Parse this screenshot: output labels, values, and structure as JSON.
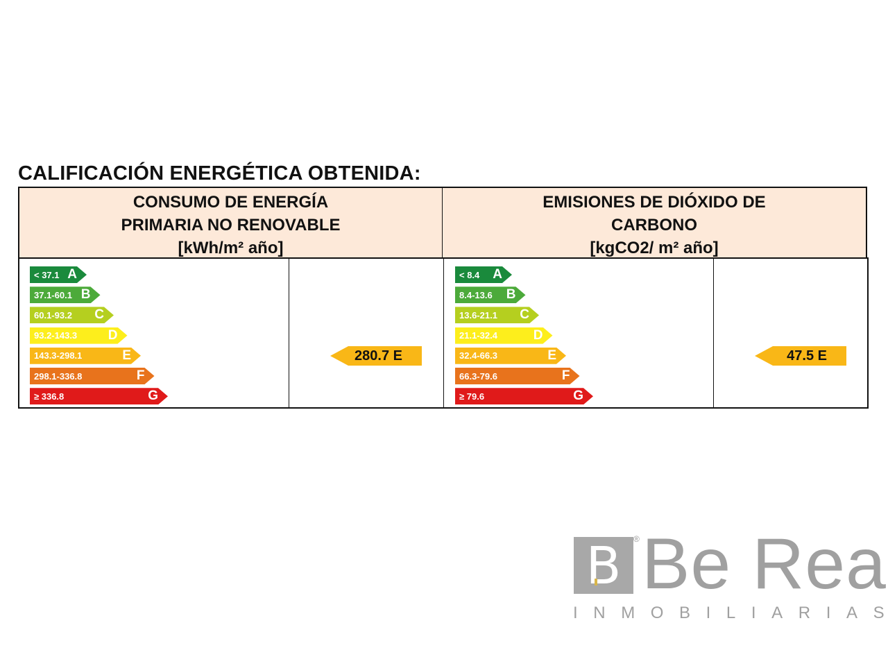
{
  "title": "CALIFICACIÓN ENERGÉTICA OBTENIDA:",
  "energy": {
    "header": [
      "CONSUMO DE ENERGÍA",
      "PRIMARIA NO RENOVABLE",
      "[kWh/m² año]"
    ],
    "scale": [
      {
        "range": "< 37.1",
        "letter": "A",
        "color": "#1a8a3c"
      },
      {
        "range": "37.1-60.1",
        "letter": "B",
        "color": "#4caa3a"
      },
      {
        "range": "60.1-93.2",
        "letter": "C",
        "color": "#b5cf1f"
      },
      {
        "range": "93.2-143.3",
        "letter": "D",
        "color": "#fdee1c"
      },
      {
        "range": "143.3-298.1",
        "letter": "E",
        "color": "#f9b717"
      },
      {
        "range": "298.1-336.8",
        "letter": "F",
        "color": "#e8731c"
      },
      {
        "range": "≥ 336.8",
        "letter": "G",
        "color": "#e01a1a"
      }
    ],
    "value": "280.7 E",
    "rating_color": "#f9b717"
  },
  "emissions": {
    "header": [
      "EMISIONES DE DIÓXIDO DE",
      "CARBONO",
      "[kgCO2/ m² año]"
    ],
    "scale": [
      {
        "range": "< 8.4",
        "letter": "A",
        "color": "#1a8a3c"
      },
      {
        "range": "8.4-13.6",
        "letter": "B",
        "color": "#4caa3a"
      },
      {
        "range": "13.6-21.1",
        "letter": "C",
        "color": "#b5cf1f"
      },
      {
        "range": "21.1-32.4",
        "letter": "D",
        "color": "#fdee1c"
      },
      {
        "range": "32.4-66.3",
        "letter": "E",
        "color": "#f9b717"
      },
      {
        "range": "66.3-79.6",
        "letter": "F",
        "color": "#e8731c"
      },
      {
        "range": "≥ 79.6",
        "letter": "G",
        "color": "#e01a1a"
      }
    ],
    "value": "47.5 E",
    "rating_color": "#f9b717"
  },
  "logo": {
    "mark": "B",
    "registered": "®",
    "name": "Be Real",
    "tagline": "INMOBILIARIAS",
    "color": "#a0a0a0"
  }
}
